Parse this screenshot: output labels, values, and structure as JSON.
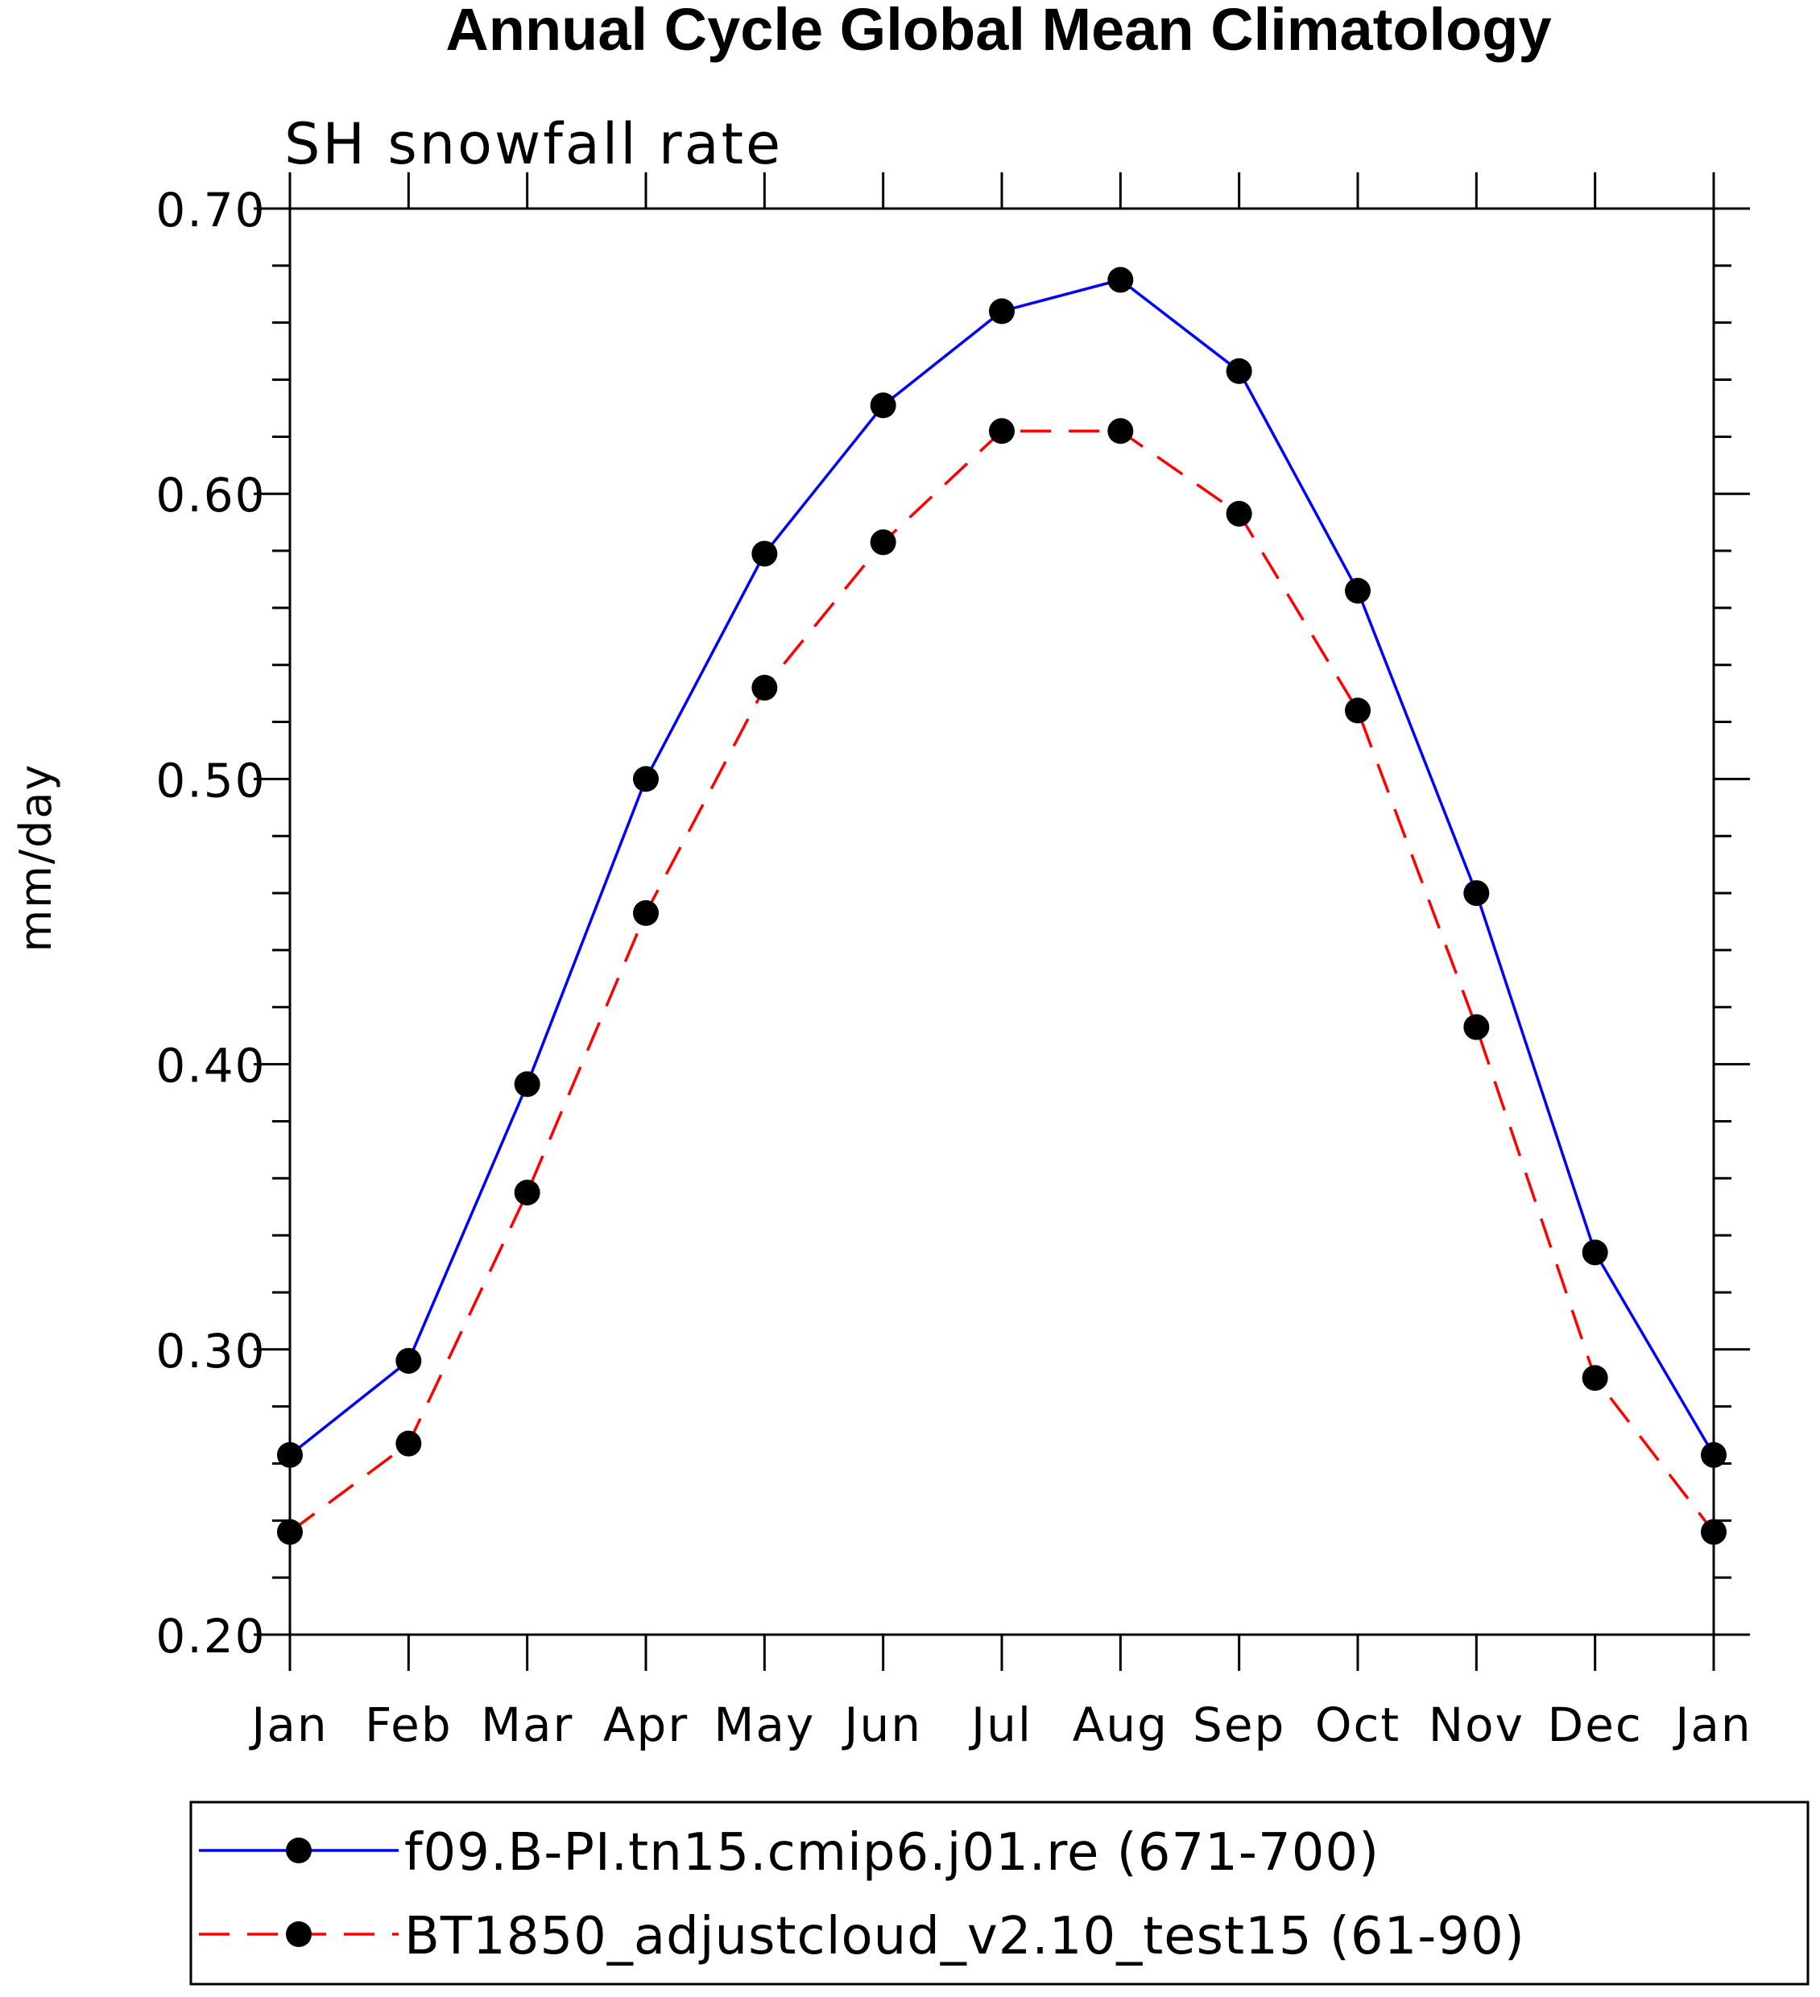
{
  "chart_data": {
    "type": "line",
    "title": "Annual Cycle Global Mean Climatology",
    "subtitle": "SH snowfall rate",
    "xlabel": "",
    "ylabel": "mm/day",
    "categories": [
      "Jan",
      "Feb",
      "Mar",
      "Apr",
      "May",
      "Jun",
      "Jul",
      "Aug",
      "Sep",
      "Oct",
      "Nov",
      "Dec",
      "Jan"
    ],
    "ylim": [
      0.2,
      0.7
    ],
    "yticks": [
      "0.20",
      "0.30",
      "0.40",
      "0.50",
      "0.60",
      "0.70"
    ],
    "grid": false,
    "legend_position": "bottom",
    "series": [
      {
        "name": "f09.B-PI.tn15.cmip6.j01.re (671-700)",
        "color": "#0000ff",
        "line_style": "solid",
        "marker": "filled-circle",
        "values": [
          0.263,
          0.296,
          0.393,
          0.5,
          0.579,
          0.631,
          0.664,
          0.675,
          0.643,
          0.566,
          0.46,
          0.334,
          0.263
        ]
      },
      {
        "name": "BT1850_adjustcloud_v2.10_test15 (61-90)",
        "color": "#ff0000",
        "line_style": "dashed",
        "marker": "filled-circle",
        "values": [
          0.236,
          0.267,
          0.355,
          0.453,
          0.532,
          0.583,
          0.622,
          0.622,
          0.593,
          0.524,
          0.413,
          0.29,
          0.236
        ]
      }
    ]
  }
}
